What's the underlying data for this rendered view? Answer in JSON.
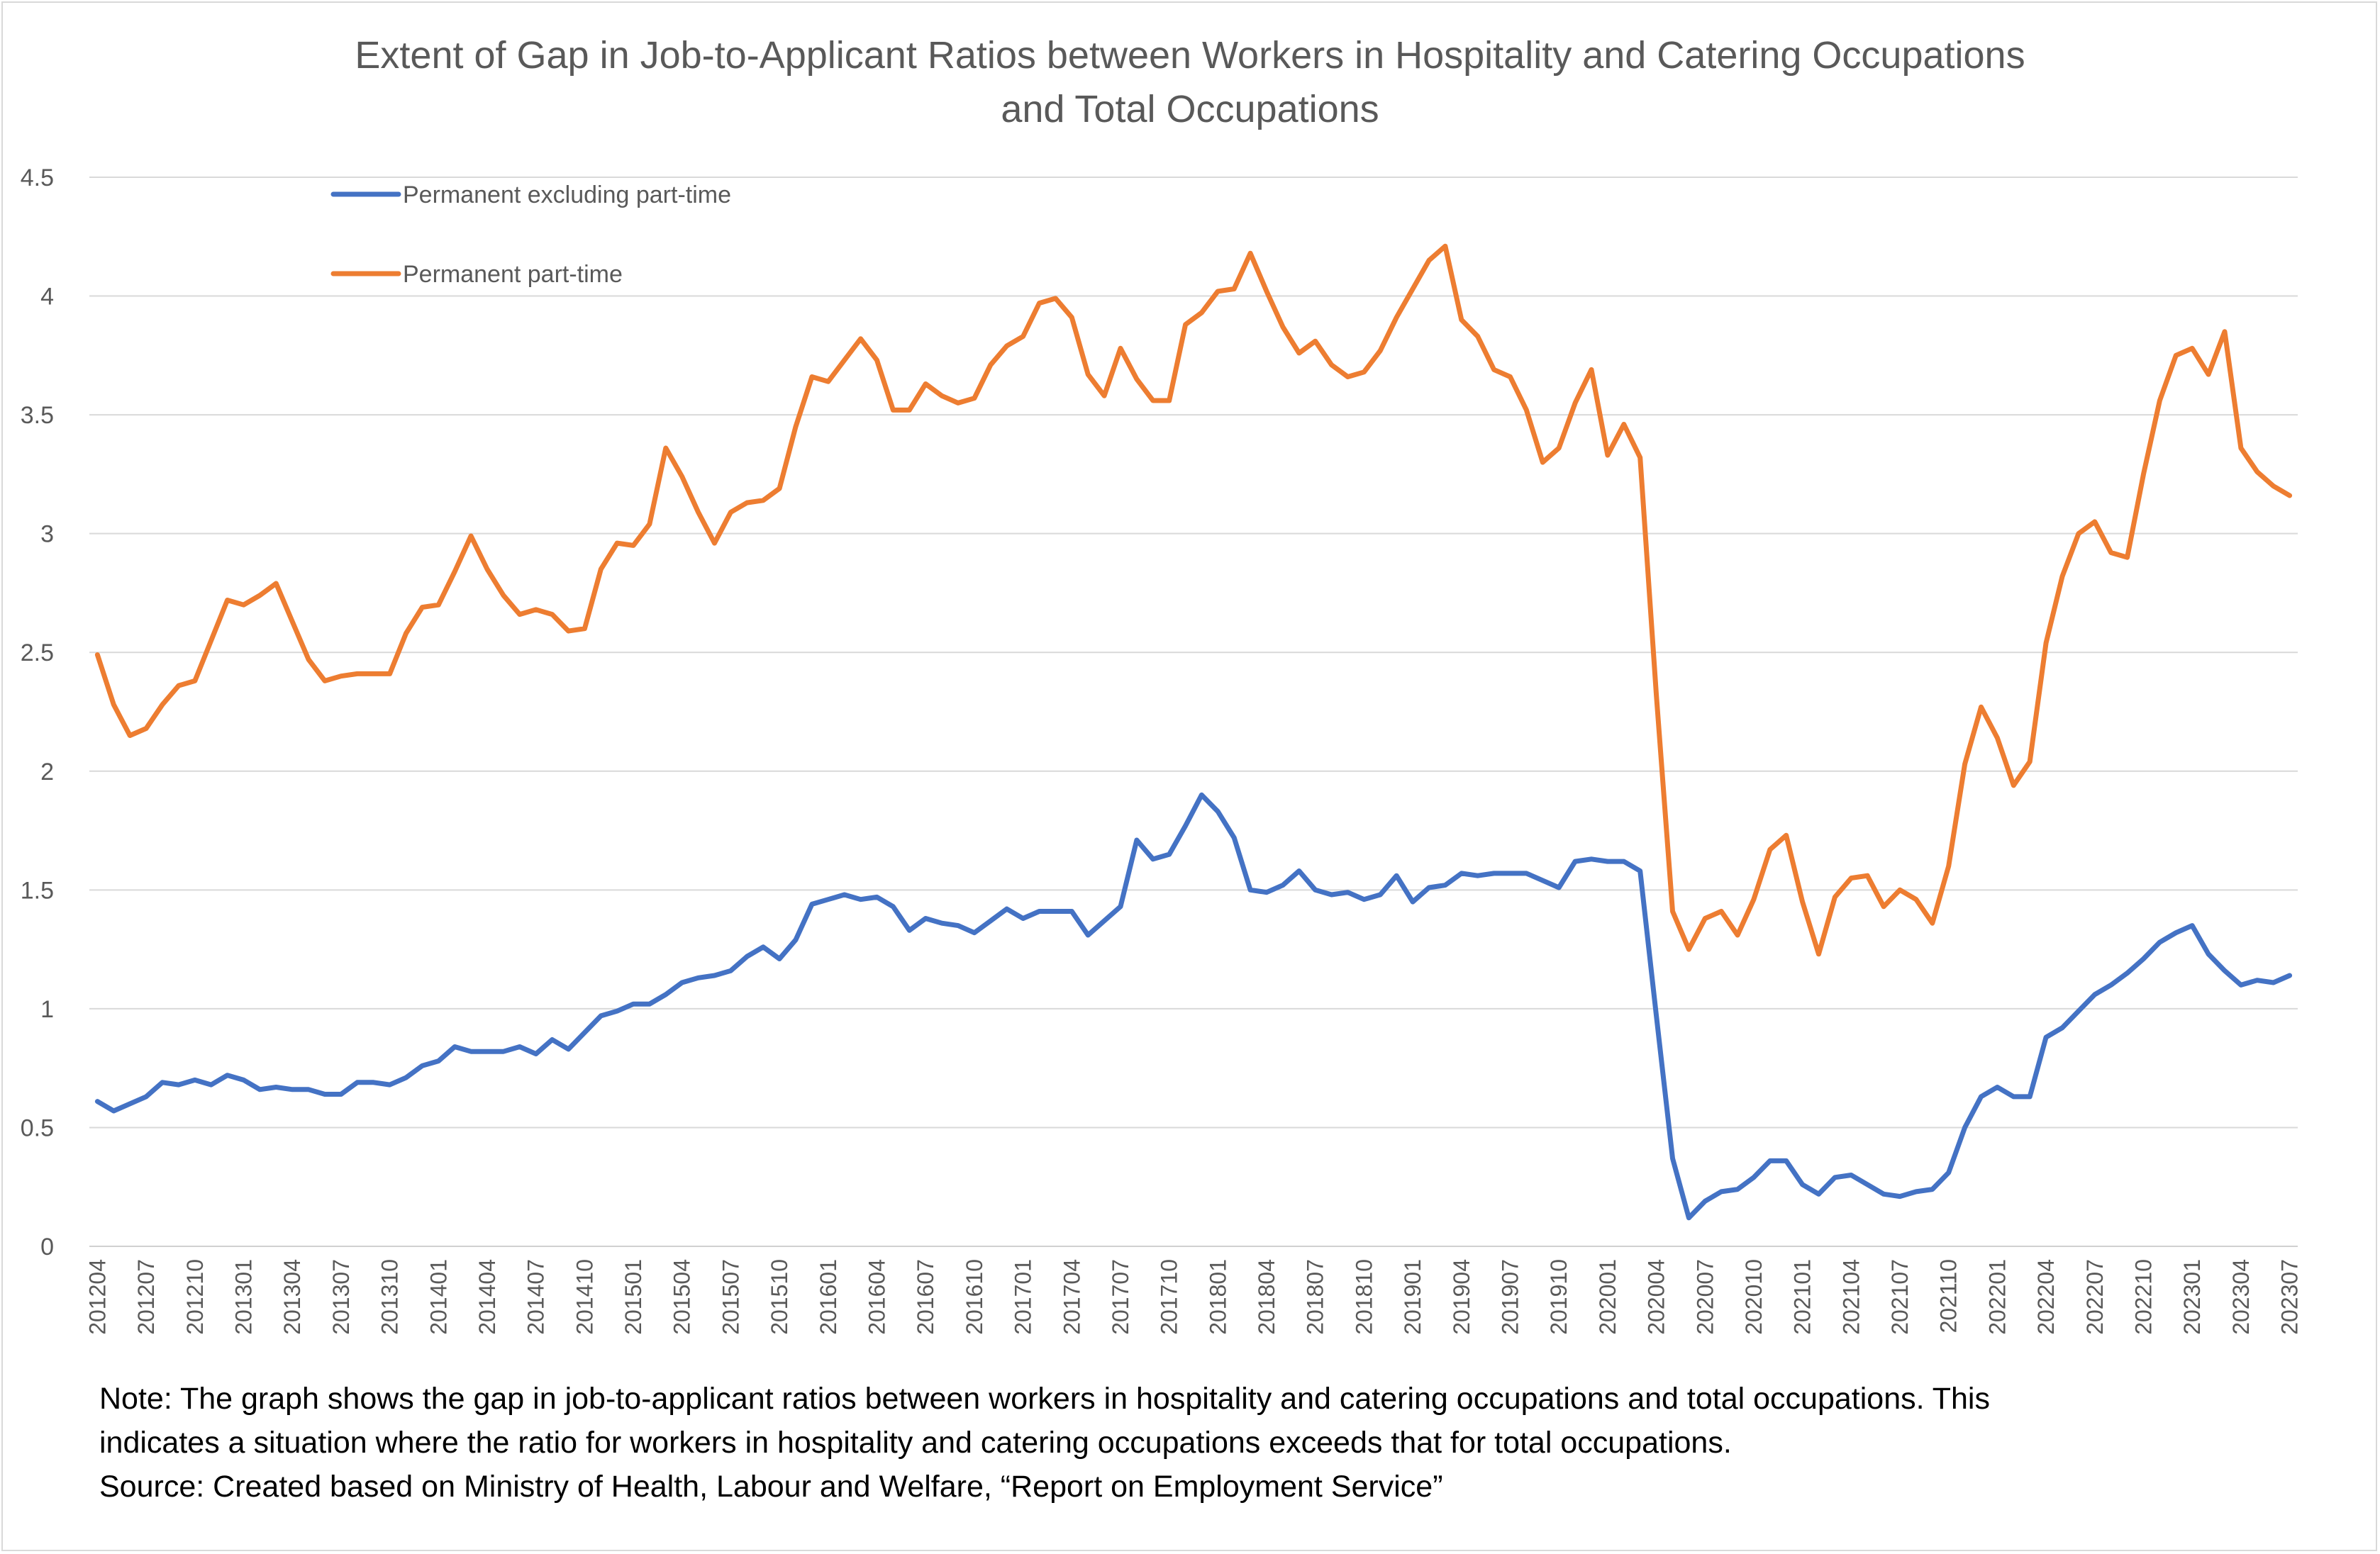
{
  "chart_data": {
    "type": "line",
    "title": "Extent of Gap in Job-to-Applicant Ratios between Workers in Hospitality and Catering Occupations and Total Occupations",
    "title_lines": [
      "Extent of Gap in Job-to-Applicant Ratios between Workers in Hospitality and Catering Occupations",
      "and Total Occupations"
    ],
    "xlabel": "",
    "ylabel": "",
    "ylim": [
      0,
      4.5
    ],
    "y_ticks": [
      "0",
      "0.5",
      "1",
      "1.5",
      "2",
      "2.5",
      "3",
      "3.5",
      "4",
      "4.5"
    ],
    "x": [
      "201204",
      "201205",
      "201206",
      "201207",
      "201208",
      "201209",
      "201210",
      "201211",
      "201212",
      "201301",
      "201302",
      "201303",
      "201304",
      "201305",
      "201306",
      "201307",
      "201308",
      "201309",
      "201310",
      "201311",
      "201312",
      "201401",
      "201402",
      "201403",
      "201404",
      "201405",
      "201406",
      "201407",
      "201408",
      "201409",
      "201410",
      "201411",
      "201412",
      "201501",
      "201502",
      "201503",
      "201504",
      "201505",
      "201506",
      "201507",
      "201508",
      "201509",
      "201510",
      "201511",
      "201512",
      "201601",
      "201602",
      "201603",
      "201604",
      "201605",
      "201606",
      "201607",
      "201608",
      "201609",
      "201610",
      "201611",
      "201612",
      "201701",
      "201702",
      "201703",
      "201704",
      "201705",
      "201706",
      "201707",
      "201708",
      "201709",
      "201710",
      "201711",
      "201712",
      "201801",
      "201802",
      "201803",
      "201804",
      "201805",
      "201806",
      "201807",
      "201808",
      "201809",
      "201810",
      "201811",
      "201812",
      "201901",
      "201902",
      "201903",
      "201904",
      "201905",
      "201906",
      "201907",
      "201908",
      "201909",
      "201910",
      "201911",
      "201912",
      "202001",
      "202002",
      "202003",
      "202004",
      "202005",
      "202006",
      "202007",
      "202008",
      "202009",
      "202010",
      "202011",
      "202012",
      "202101",
      "202102",
      "202103",
      "202104",
      "202105",
      "202106",
      "202107",
      "202108",
      "202109",
      "202110",
      "202111",
      "202112",
      "202201",
      "202202",
      "202203",
      "202204",
      "202205",
      "202206",
      "202207",
      "202208",
      "202209",
      "202210",
      "202211",
      "202212",
      "202301",
      "202302",
      "202303",
      "202304",
      "202305",
      "202306",
      "202307"
    ],
    "x_tick_labels": [
      "201204",
      "201207",
      "201210",
      "201301",
      "201304",
      "201307",
      "201310",
      "201401",
      "201404",
      "201407",
      "201410",
      "201501",
      "201504",
      "201507",
      "201510",
      "201601",
      "201604",
      "201607",
      "201610",
      "201701",
      "201704",
      "201707",
      "201710",
      "201801",
      "201804",
      "201807",
      "201810",
      "201901",
      "201904",
      "201907",
      "201910",
      "202001",
      "202004",
      "202007",
      "202010",
      "202101",
      "202104",
      "202107",
      "202110",
      "202201",
      "202204",
      "202207",
      "202210",
      "202301",
      "202304",
      "202307"
    ],
    "series": [
      {
        "name": "Permanent excluding part-time",
        "color": "#4472c4",
        "values": [
          0.61,
          0.57,
          0.6,
          0.63,
          0.69,
          0.68,
          0.7,
          0.68,
          0.72,
          0.7,
          0.66,
          0.67,
          0.66,
          0.66,
          0.64,
          0.64,
          0.69,
          0.69,
          0.68,
          0.71,
          0.76,
          0.78,
          0.84,
          0.82,
          0.82,
          0.82,
          0.84,
          0.81,
          0.87,
          0.83,
          0.9,
          0.97,
          0.99,
          1.02,
          1.02,
          1.06,
          1.11,
          1.13,
          1.14,
          1.16,
          1.22,
          1.26,
          1.21,
          1.29,
          1.44,
          1.46,
          1.48,
          1.46,
          1.47,
          1.43,
          1.33,
          1.38,
          1.36,
          1.35,
          1.32,
          1.37,
          1.42,
          1.38,
          1.41,
          1.41,
          1.41,
          1.31,
          1.37,
          1.43,
          1.71,
          1.63,
          1.65,
          1.77,
          1.9,
          1.83,
          1.72,
          1.5,
          1.49,
          1.52,
          1.58,
          1.5,
          1.48,
          1.49,
          1.46,
          1.48,
          1.56,
          1.45,
          1.51,
          1.52,
          1.57,
          1.56,
          1.57,
          1.57,
          1.57,
          1.54,
          1.51,
          1.62,
          1.63,
          1.62,
          1.62,
          1.58,
          0.97,
          0.37,
          0.12,
          0.19,
          0.23,
          0.24,
          0.29,
          0.36,
          0.36,
          0.26,
          0.22,
          0.29,
          0.3,
          0.26,
          0.22,
          0.21,
          0.23,
          0.24,
          0.31,
          0.5,
          0.63,
          0.67,
          0.63,
          0.63,
          0.88,
          0.92,
          0.99,
          1.06,
          1.1,
          1.15,
          1.21,
          1.28,
          1.32,
          1.35,
          1.23,
          1.16,
          1.1,
          1.12,
          1.11,
          1.14
        ]
      },
      {
        "name": "Permanent part-time",
        "color": "#ed7d31",
        "values": [
          2.49,
          2.28,
          2.15,
          2.18,
          2.28,
          2.36,
          2.38,
          2.55,
          2.72,
          2.7,
          2.74,
          2.79,
          2.63,
          2.47,
          2.38,
          2.4,
          2.41,
          2.41,
          2.41,
          2.58,
          2.69,
          2.7,
          2.84,
          2.99,
          2.85,
          2.74,
          2.66,
          2.68,
          2.66,
          2.59,
          2.6,
          2.85,
          2.96,
          2.95,
          3.04,
          3.36,
          3.24,
          3.09,
          2.96,
          3.09,
          3.13,
          3.14,
          3.19,
          3.45,
          3.66,
          3.64,
          3.73,
          3.82,
          3.73,
          3.52,
          3.52,
          3.63,
          3.58,
          3.55,
          3.57,
          3.71,
          3.79,
          3.83,
          3.97,
          3.99,
          3.91,
          3.67,
          3.58,
          3.78,
          3.65,
          3.56,
          3.56,
          3.88,
          3.93,
          4.02,
          4.03,
          4.18,
          4.02,
          3.87,
          3.76,
          3.81,
          3.71,
          3.66,
          3.68,
          3.77,
          3.91,
          4.03,
          4.15,
          4.21,
          3.9,
          3.83,
          3.69,
          3.66,
          3.52,
          3.3,
          3.36,
          3.55,
          3.69,
          3.33,
          3.46,
          3.32,
          2.32,
          1.41,
          1.25,
          1.38,
          1.41,
          1.31,
          1.46,
          1.67,
          1.73,
          1.45,
          1.23,
          1.47,
          1.55,
          1.56,
          1.43,
          1.5,
          1.46,
          1.36,
          1.6,
          2.03,
          2.27,
          2.14,
          1.94,
          2.04,
          2.54,
          2.82,
          3.0,
          3.05,
          2.92,
          2.9,
          3.25,
          3.56,
          3.75,
          3.78,
          3.67,
          3.85,
          3.36,
          3.26,
          3.2,
          3.16
        ]
      }
    ],
    "grid": true,
    "legend_position": "top-left inside plot"
  },
  "notes": [
    "Note: The graph shows the gap in job-to-applicant ratios between workers in hospitality and catering occupations and total occupations. This",
    "indicates a situation where the ratio for workers in hospitality and catering occupations exceeds that for total occupations.",
    "Source: Created based on Ministry of Health, Labour and Welfare, “Report on Employment Service”"
  ]
}
